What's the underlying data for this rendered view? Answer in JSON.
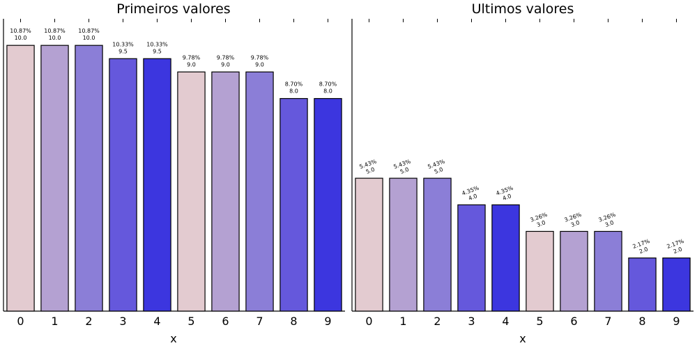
{
  "chart_data": [
    {
      "type": "bar",
      "title": "Primeiros valores",
      "xlabel": "x",
      "ylabel": "",
      "categories": [
        "0",
        "1",
        "2",
        "3",
        "4",
        "5",
        "6",
        "7",
        "8",
        "9"
      ],
      "values": [
        10.0,
        10.0,
        10.0,
        9.5,
        9.5,
        9.0,
        9.0,
        9.0,
        8.0,
        8.0
      ],
      "percent_labels": [
        "10.87%",
        "10.87%",
        "10.87%",
        "10.33%",
        "10.33%",
        "9.78%",
        "9.78%",
        "9.78%",
        "8.70%",
        "8.70%"
      ],
      "value_labels": [
        "10.0",
        "10.0",
        "10.0",
        "9.5",
        "9.5",
        "9.0",
        "9.0",
        "9.0",
        "8.0",
        "8.0"
      ],
      "ylim": [
        0,
        11
      ],
      "bar_colors": [
        "#e3cbd0",
        "#b4a1d2",
        "#8b7ed7",
        "#6558dc",
        "#3c36df",
        "#e3cbd0",
        "#b4a1d2",
        "#8b7ed7",
        "#6558dc",
        "#3c36df"
      ],
      "label_rotation": 0
    },
    {
      "type": "bar",
      "title": "Ultimos valores",
      "xlabel": "x",
      "ylabel": "",
      "categories": [
        "0",
        "1",
        "2",
        "3",
        "4",
        "5",
        "6",
        "7",
        "8",
        "9"
      ],
      "values": [
        5.0,
        5.0,
        5.0,
        4.0,
        4.0,
        3.0,
        3.0,
        3.0,
        2.0,
        2.0
      ],
      "percent_labels": [
        "5.43%",
        "5.43%",
        "5.43%",
        "4.35%",
        "4.35%",
        "3.26%",
        "3.26%",
        "3.26%",
        "2.17%",
        "2.17%"
      ],
      "value_labels": [
        "5.0",
        "5.0",
        "5.0",
        "4.0",
        "4.0",
        "3.0",
        "3.0",
        "3.0",
        "2.0",
        "2.0"
      ],
      "ylim": [
        0,
        11
      ],
      "bar_colors": [
        "#e3cbd0",
        "#b4a1d2",
        "#8b7ed7",
        "#6558dc",
        "#3c36df",
        "#e3cbd0",
        "#b4a1d2",
        "#8b7ed7",
        "#6558dc",
        "#3c36df"
      ],
      "label_rotation": -20
    }
  ]
}
